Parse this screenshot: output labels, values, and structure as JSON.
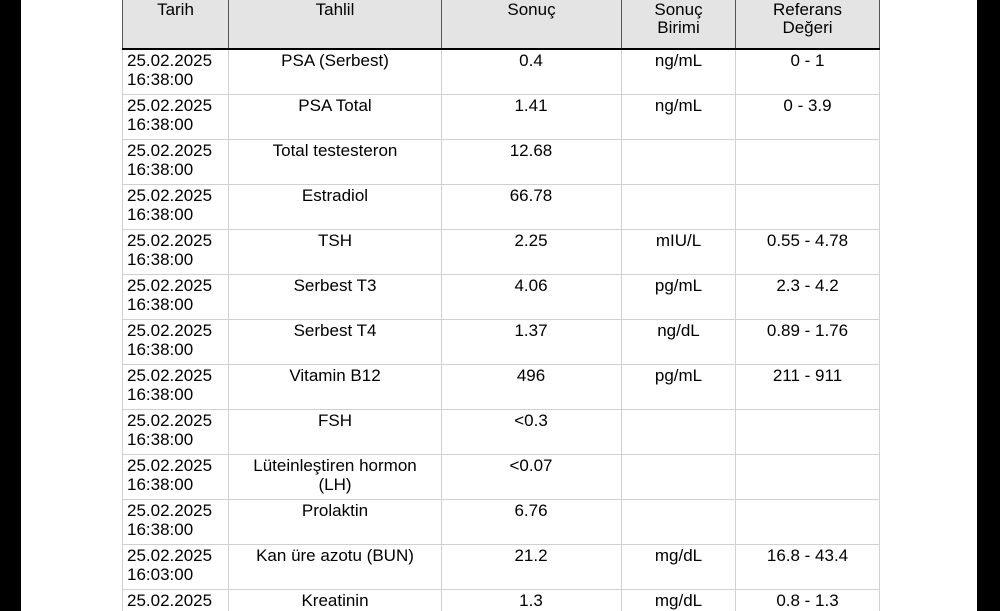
{
  "headers": {
    "date": "Tarih",
    "test": "Tahlil",
    "result": "Sonuç",
    "unit_line1": "Sonuç",
    "unit_line2": "Birimi",
    "ref_line1": "Referans",
    "ref_line2": "Değeri"
  },
  "rows": [
    {
      "date": "25.02.2025",
      "time": "16:38:00",
      "test": "PSA (Serbest)",
      "result": "0.4",
      "unit": "ng/mL",
      "reference": "0 - 1"
    },
    {
      "date": "25.02.2025",
      "time": "16:38:00",
      "test": "PSA Total",
      "result": "1.41",
      "unit": "ng/mL",
      "reference": "0 - 3.9"
    },
    {
      "date": "25.02.2025",
      "time": "16:38:00",
      "test": "Total testesteron",
      "result": "12.68",
      "unit": "",
      "reference": ""
    },
    {
      "date": "25.02.2025",
      "time": "16:38:00",
      "test": "Estradiol",
      "result": "66.78",
      "unit": "",
      "reference": ""
    },
    {
      "date": "25.02.2025",
      "time": "16:38:00",
      "test": "TSH",
      "result": "2.25",
      "unit": "mIU/L",
      "reference": "0.55 - 4.78"
    },
    {
      "date": "25.02.2025",
      "time": "16:38:00",
      "test": "Serbest T3",
      "result": "4.06",
      "unit": "pg/mL",
      "reference": "2.3 - 4.2"
    },
    {
      "date": "25.02.2025",
      "time": "16:38:00",
      "test": "Serbest T4",
      "result": "1.37",
      "unit": "ng/dL",
      "reference": "0.89 - 1.76"
    },
    {
      "date": "25.02.2025",
      "time": "16:38:00",
      "test": "Vitamin B12",
      "result": "496",
      "unit": "pg/mL",
      "reference": "211 - 911"
    },
    {
      "date": "25.02.2025",
      "time": "16:38:00",
      "test": "FSH",
      "result": "<0.3",
      "unit": "",
      "reference": ""
    },
    {
      "date": "25.02.2025",
      "time": "16:38:00",
      "test": "Lüteinleştiren hormon (LH)",
      "result": "<0.07",
      "unit": "",
      "reference": ""
    },
    {
      "date": "25.02.2025",
      "time": "16:38:00",
      "test": "Prolaktin",
      "result": "6.76",
      "unit": "",
      "reference": ""
    },
    {
      "date": "25.02.2025",
      "time": "16:03:00",
      "test": "Kan üre azotu (BUN)",
      "result": "21.2",
      "unit": "mg/dL",
      "reference": "16.8 - 43.4"
    },
    {
      "date": "25.02.2025",
      "time": "",
      "test": "Kreatinin",
      "result": "1.3",
      "unit": "mg/dL",
      "reference": "0.8 - 1.3"
    }
  ]
}
